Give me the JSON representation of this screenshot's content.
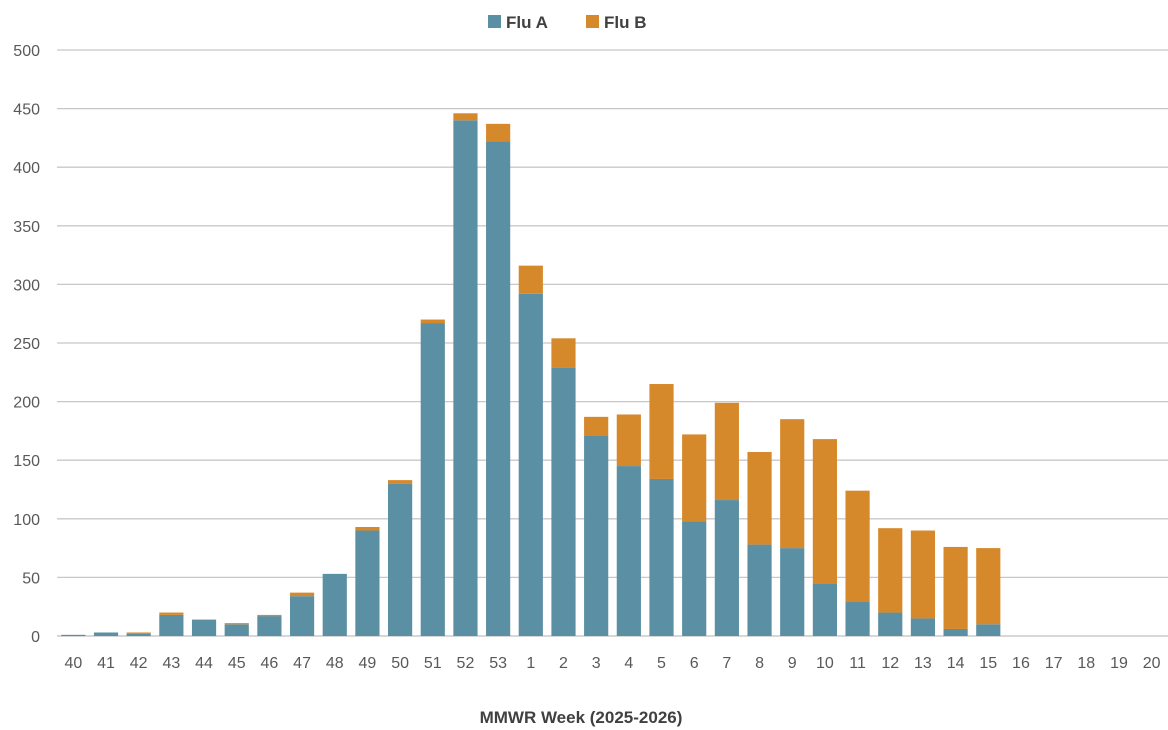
{
  "chart_data": {
    "type": "bar",
    "stacked": true,
    "title": "",
    "xlabel": "MMWR Week (2025-2026)",
    "ylabel": "",
    "ylim": [
      0,
      500
    ],
    "yticks": [
      0,
      50,
      100,
      150,
      200,
      250,
      300,
      350,
      400,
      450,
      500
    ],
    "grid": true,
    "legend_position": "top-center",
    "categories": [
      "40",
      "41",
      "42",
      "43",
      "44",
      "45",
      "46",
      "47",
      "48",
      "49",
      "50",
      "51",
      "52",
      "53",
      "1",
      "2",
      "3",
      "4",
      "5",
      "6",
      "7",
      "8",
      "9",
      "10",
      "11",
      "12",
      "13",
      "14",
      "15",
      "16",
      "17",
      "18",
      "19",
      "20"
    ],
    "series": [
      {
        "name": "Flu A",
        "color": "#5b8fa3",
        "values": [
          1,
          3,
          2,
          18,
          14,
          10,
          17,
          34,
          53,
          90,
          130,
          267,
          440,
          422,
          292,
          229,
          171,
          145,
          134,
          98,
          116,
          78,
          75,
          45,
          29,
          20,
          15,
          6,
          10,
          0,
          0,
          0,
          0,
          0
        ]
      },
      {
        "name": "Flu B",
        "color": "#d6892b",
        "values": [
          0,
          0,
          1,
          2,
          0,
          1,
          1,
          3,
          0,
          3,
          3,
          3,
          6,
          15,
          24,
          25,
          16,
          44,
          81,
          74,
          83,
          79,
          110,
          123,
          95,
          72,
          75,
          70,
          65,
          0,
          0,
          0,
          0,
          0
        ]
      }
    ]
  }
}
